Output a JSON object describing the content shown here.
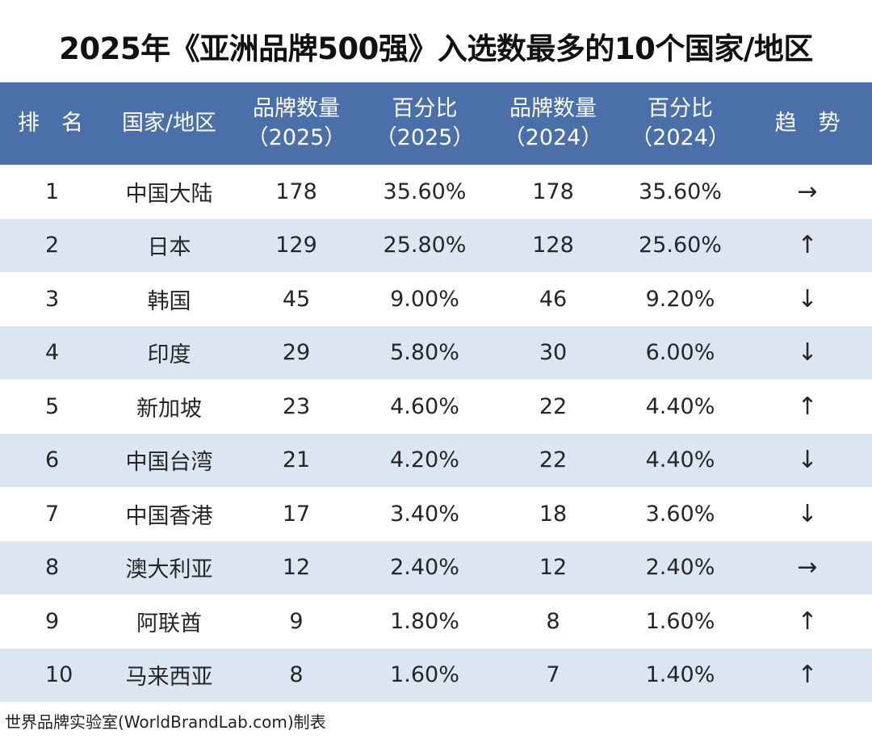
{
  "title": "2025年《亚洲品牌500强》入选数最多的10个国家/地区",
  "headers": {
    "rank": "排　名",
    "region": "国家/地区",
    "count2025": [
      "品牌数量",
      "（2025）"
    ],
    "pct2025": [
      "百分比",
      "（2025）"
    ],
    "count2024": [
      "品牌数量",
      "（2024）"
    ],
    "pct2024": [
      "百分比",
      "（2024）"
    ],
    "trend": "趋　势"
  },
  "rows": [
    {
      "rank": "1",
      "region": "中国大陆",
      "count2025": "178",
      "pct2025": "35.60%",
      "count2024": "178",
      "pct2024": "35.60%",
      "trend": "→"
    },
    {
      "rank": "2",
      "region": "日本",
      "count2025": "129",
      "pct2025": "25.80%",
      "count2024": "128",
      "pct2024": "25.60%",
      "trend": "↑"
    },
    {
      "rank": "3",
      "region": "韩国",
      "count2025": "45",
      "pct2025": "9.00%",
      "count2024": "46",
      "pct2024": "9.20%",
      "trend": "↓"
    },
    {
      "rank": "4",
      "region": "印度",
      "count2025": "29",
      "pct2025": "5.80%",
      "count2024": "30",
      "pct2024": "6.00%",
      "trend": "↓"
    },
    {
      "rank": "5",
      "region": "新加坡",
      "count2025": "23",
      "pct2025": "4.60%",
      "count2024": "22",
      "pct2024": "4.40%",
      "trend": "↑"
    },
    {
      "rank": "6",
      "region": "中国台湾",
      "count2025": "21",
      "pct2025": "4.20%",
      "count2024": "22",
      "pct2024": "4.40%",
      "trend": "↓"
    },
    {
      "rank": "7",
      "region": "中国香港",
      "count2025": "17",
      "pct2025": "3.40%",
      "count2024": "18",
      "pct2024": "3.60%",
      "trend": "↓"
    },
    {
      "rank": "8",
      "region": "澳大利亚",
      "count2025": "12",
      "pct2025": "2.40%",
      "count2024": "12",
      "pct2024": "2.40%",
      "trend": "→"
    },
    {
      "rank": "9",
      "region": "阿联酋",
      "count2025": "9",
      "pct2025": "1.80%",
      "count2024": "8",
      "pct2024": "1.60%",
      "trend": "↑"
    },
    {
      "rank": "10",
      "region": "马来西亚",
      "count2025": "8",
      "pct2025": "1.60%",
      "count2024": "7",
      "pct2024": "1.40%",
      "trend": "↑"
    }
  ],
  "footer": "世界品牌实验室(WorldBrandLab.com)制表",
  "colors": {
    "header_bg": "#4a6fa9",
    "stripe_bg": "#dce6f3"
  }
}
